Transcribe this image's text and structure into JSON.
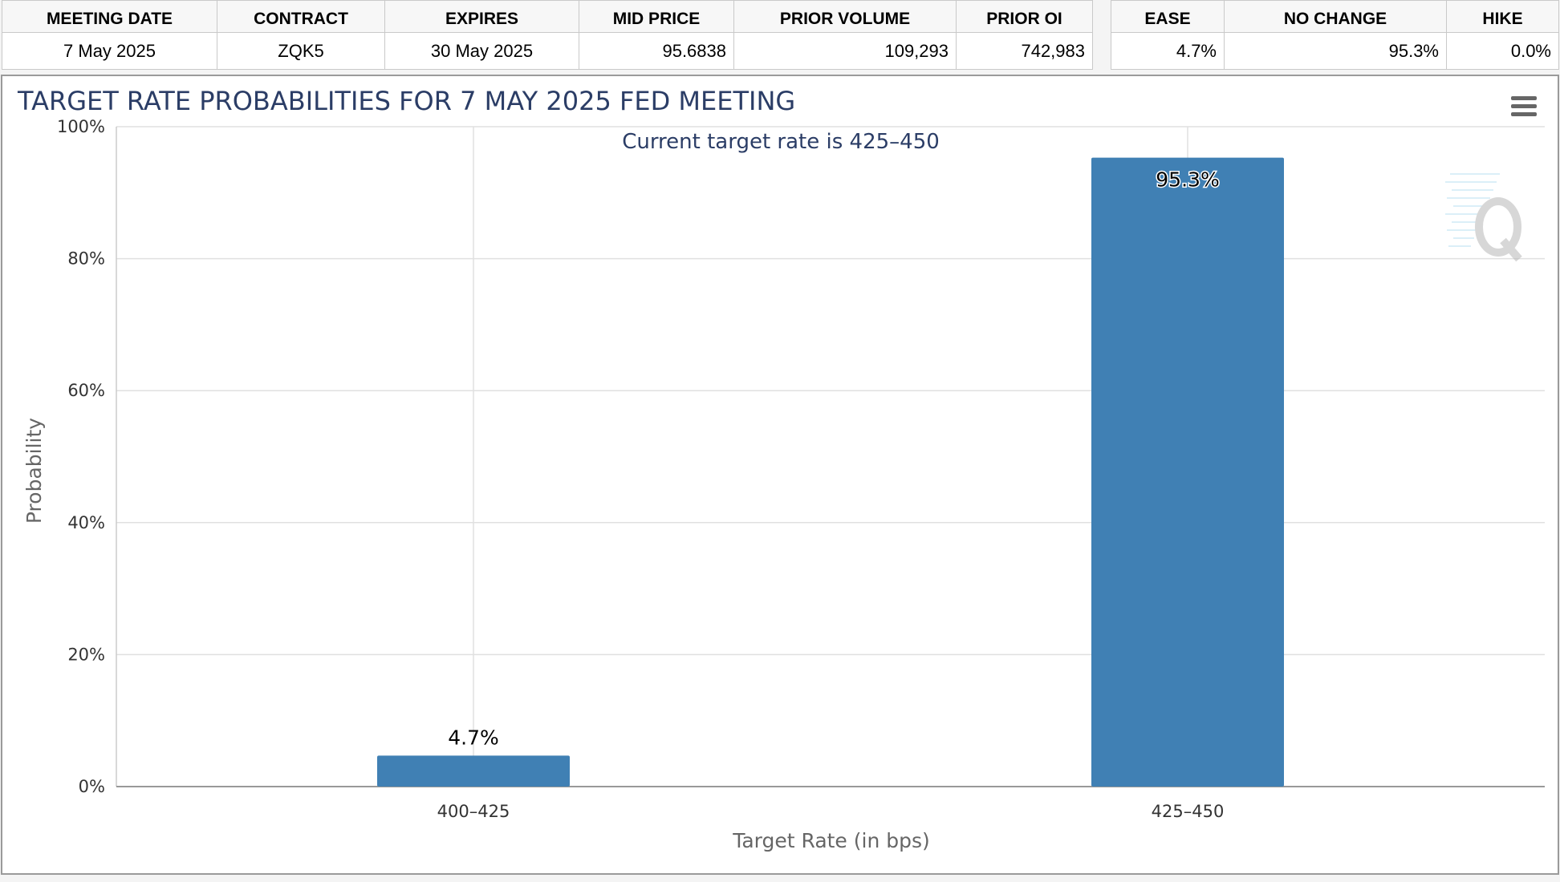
{
  "meeting_table": {
    "headers": [
      "MEETING DATE",
      "CONTRACT",
      "EXPIRES",
      "MID PRICE",
      "PRIOR VOLUME",
      "PRIOR OI"
    ],
    "row": [
      "7 May 2025",
      "ZQK5",
      "30 May 2025",
      "95.6838",
      "109,293",
      "742,983"
    ]
  },
  "probability_table": {
    "headers": [
      "EASE",
      "NO CHANGE",
      "HIKE"
    ],
    "row": [
      "4.7%",
      "95.3%",
      "0.0%"
    ]
  },
  "icons": {
    "menu": "hamburger-menu-icon",
    "watermark": "q-logo-watermark"
  },
  "colors": {
    "bar": "#4080b4",
    "title": "#2b3d66",
    "grid": "#e0e0e0"
  },
  "chart_data": {
    "type": "bar",
    "title": "TARGET RATE PROBABILITIES FOR 7 MAY 2025 FED MEETING",
    "subtitle": "Current target rate is 425–450",
    "xlabel": "Target Rate (in bps)",
    "ylabel": "Probability",
    "categories": [
      "400–425",
      "425–450"
    ],
    "values": [
      4.7,
      95.3
    ],
    "data_labels": [
      "4.7%",
      "95.3%"
    ],
    "ylim": [
      0,
      100
    ],
    "yticks": [
      0,
      20,
      40,
      60,
      80,
      100
    ],
    "ytick_labels": [
      "0%",
      "20%",
      "40%",
      "60%",
      "80%",
      "100%"
    ],
    "grid": true,
    "legend": "none"
  }
}
